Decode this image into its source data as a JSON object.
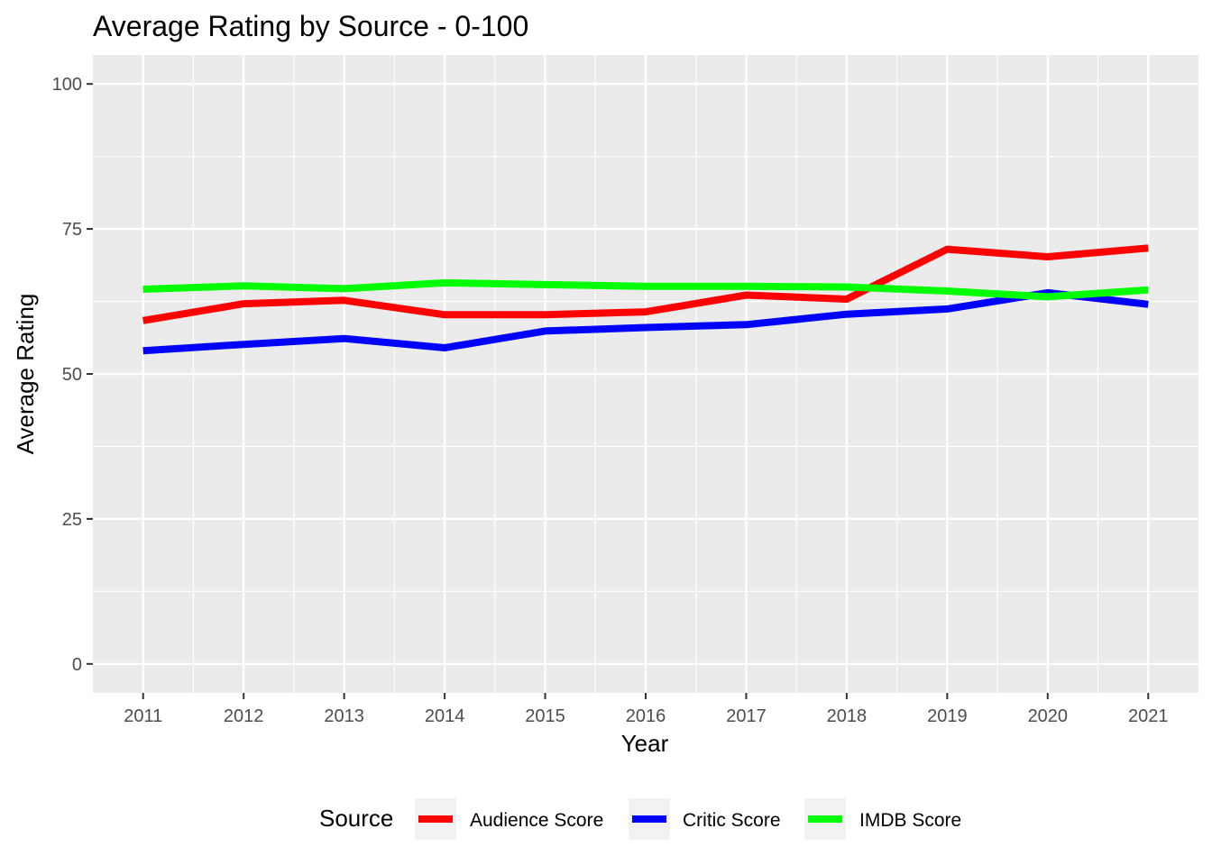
{
  "chart_data": {
    "type": "line",
    "title": "Average Rating by Source - 0-100",
    "xlabel": "Year",
    "ylabel": "Average Rating",
    "x": [
      2011,
      2012,
      2013,
      2014,
      2015,
      2016,
      2017,
      2018,
      2019,
      2020,
      2021
    ],
    "xlim": [
      2010.5,
      2021.5
    ],
    "ylim": [
      -5,
      105
    ],
    "yticks": [
      0,
      25,
      50,
      75,
      100
    ],
    "ytick_labels": [
      "0",
      "25",
      "50",
      "75",
      "100"
    ],
    "xtick_labels": [
      "2011",
      "2012",
      "2013",
      "2014",
      "2015",
      "2016",
      "2017",
      "2018",
      "2019",
      "2020",
      "2021"
    ],
    "grid": true,
    "legend": {
      "title": "Source",
      "position": "bottom"
    },
    "series": [
      {
        "name": "Audience Score",
        "color": "#ff0000",
        "values": [
          59.2,
          62.1,
          62.7,
          60.2,
          60.2,
          60.7,
          63.6,
          62.9,
          71.5,
          70.2,
          71.7
        ]
      },
      {
        "name": "Critic Score",
        "color": "#0000ff",
        "values": [
          54.0,
          55.1,
          56.1,
          54.5,
          57.4,
          58.0,
          58.5,
          60.3,
          61.2,
          64.0,
          62.0
        ]
      },
      {
        "name": "IMDB Score",
        "color": "#00ff00",
        "values": [
          64.6,
          65.2,
          64.7,
          65.7,
          65.4,
          65.1,
          65.1,
          65.0,
          64.3,
          63.3,
          64.5
        ]
      }
    ],
    "panel_background": "#ebebeb",
    "grid_color": "#ffffff"
  }
}
